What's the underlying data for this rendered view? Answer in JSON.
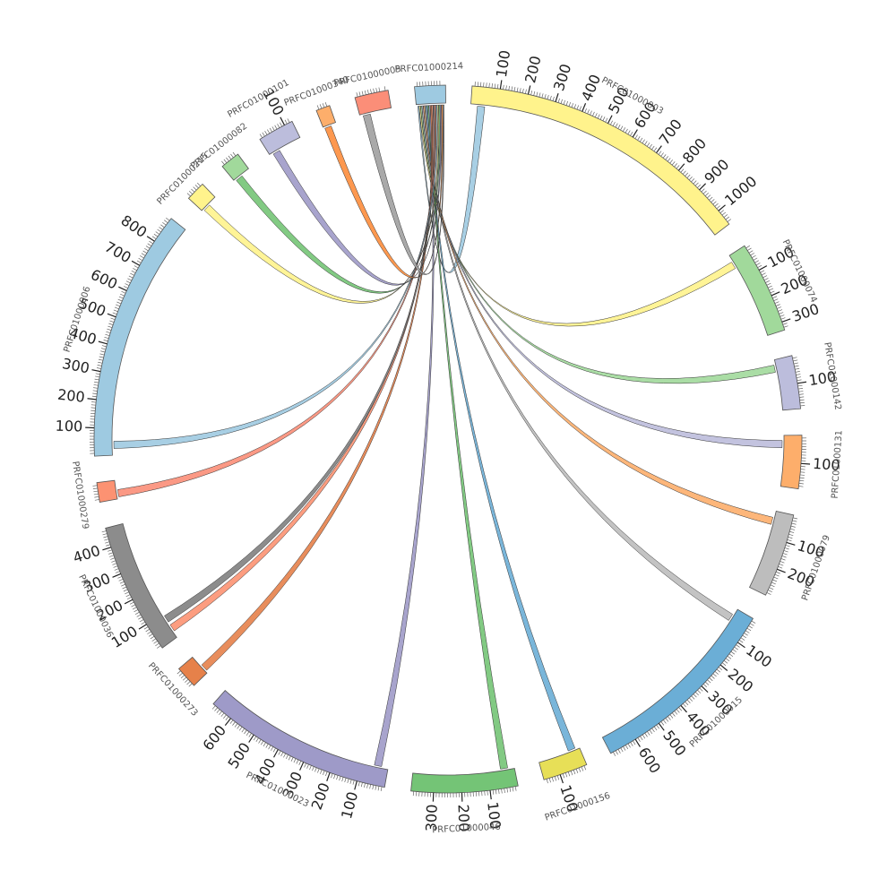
{
  "chart_data": {
    "type": "chord",
    "segments": [
      {
        "name": "PRFC01000214",
        "length": 110,
        "color": "#9ecae1",
        "ticks": []
      },
      {
        "name": "PRFC01000003",
        "length": 1060,
        "color": "#fff38c",
        "ticks": [
          100,
          200,
          300,
          400,
          500,
          600,
          700,
          800,
          900,
          1000
        ]
      },
      {
        "name": "PRFC01000074",
        "length": 330,
        "color": "#a1d99b",
        "ticks": [
          100,
          200,
          300
        ]
      },
      {
        "name": "PRFC01000142",
        "length": 190,
        "color": "#bcbddc",
        "ticks": [
          100
        ]
      },
      {
        "name": "PRFC01000131",
        "length": 190,
        "color": "#fdae6b",
        "ticks": [
          100
        ]
      },
      {
        "name": "PRFC01000079",
        "length": 300,
        "color": "#bdbdbd",
        "ticks": [
          100,
          200
        ]
      },
      {
        "name": "PRFC01000015",
        "length": 700,
        "color": "#6baed6",
        "ticks": [
          100,
          200,
          300,
          400,
          500,
          600
        ]
      },
      {
        "name": "PRFC01000156",
        "length": 160,
        "color": "#e7df57",
        "ticks": [
          100
        ]
      },
      {
        "name": "PRFC01000046",
        "length": 380,
        "color": "#74c476",
        "ticks": [
          100,
          200,
          300
        ]
      },
      {
        "name": "PRFC01000023",
        "length": 680,
        "color": "#9e9ac8",
        "ticks": [
          100,
          200,
          300,
          400,
          500,
          600
        ]
      },
      {
        "name": "PRFC01000273",
        "length": 80,
        "color": "#e6814a",
        "ticks": []
      },
      {
        "name": "PRFC01000036",
        "length": 470,
        "color": "#8c8c8c",
        "ticks": [
          100,
          200,
          300,
          400
        ]
      },
      {
        "name": "PRFC01000279",
        "length": 70,
        "color": "#fc9272",
        "ticks": []
      },
      {
        "name": "PRFC01000006",
        "length": 900,
        "color": "#9ecae1",
        "ticks": [
          100,
          200,
          300,
          400,
          500,
          600,
          700,
          800
        ]
      },
      {
        "name": "PRFC01000215",
        "length": 70,
        "color": "#fff38c",
        "ticks": []
      },
      {
        "name": "PRFC01000082",
        "length": 70,
        "color": "#a1d99b",
        "ticks": []
      },
      {
        "name": "PRFC01000101",
        "length": 130,
        "color": "#bcbddc",
        "ticks": [
          100
        ]
      },
      {
        "name": "PRFC01000340",
        "length": 50,
        "color": "#fdae6b",
        "ticks": []
      },
      {
        "name": "PRFC01000005",
        "length": 120,
        "color": "#fb8e78",
        "ticks": []
      }
    ],
    "links": [
      {
        "source": "PRFC01000214",
        "target": "PRFC01000003",
        "color": "#9ecae1"
      },
      {
        "source": "PRFC01000214",
        "target": "PRFC01000074",
        "color": "#fff38c"
      },
      {
        "source": "PRFC01000214",
        "target": "PRFC01000142",
        "color": "#a1d99b"
      },
      {
        "source": "PRFC01000214",
        "target": "PRFC01000131",
        "color": "#bcbddc"
      },
      {
        "source": "PRFC01000214",
        "target": "PRFC01000079",
        "color": "#fdae6b"
      },
      {
        "source": "PRFC01000214",
        "target": "PRFC01000015",
        "color": "#bdbdbd"
      },
      {
        "source": "PRFC01000214",
        "target": "PRFC01000156",
        "color": "#6baed6"
      },
      {
        "source": "PRFC01000214",
        "target": "PRFC01000046",
        "color": "#74c476"
      },
      {
        "source": "PRFC01000214",
        "target": "PRFC01000023",
        "color": "#9e9ac8"
      },
      {
        "source": "PRFC01000214",
        "target": "PRFC01000273",
        "color": "#e6814a"
      },
      {
        "source": "PRFC01000214",
        "target": "PRFC01000036",
        "color": "#fc9272"
      },
      {
        "source": "PRFC01000214",
        "target": "PRFC01000036",
        "color": "#7f7f7f"
      },
      {
        "source": "PRFC01000214",
        "target": "PRFC01000279",
        "color": "#fb8e78"
      },
      {
        "source": "PRFC01000214",
        "target": "PRFC01000006",
        "color": "#9ecae1"
      },
      {
        "source": "PRFC01000214",
        "target": "PRFC01000215",
        "color": "#fff38c"
      },
      {
        "source": "PRFC01000214",
        "target": "PRFC01000082",
        "color": "#74c476"
      },
      {
        "source": "PRFC01000214",
        "target": "PRFC01000101",
        "color": "#9e9ac8"
      },
      {
        "source": "PRFC01000214",
        "target": "PRFC01000340",
        "color": "#fd8d3c"
      },
      {
        "source": "PRFC01000214",
        "target": "PRFC01000005",
        "color": "#a0a0a0"
      }
    ]
  }
}
